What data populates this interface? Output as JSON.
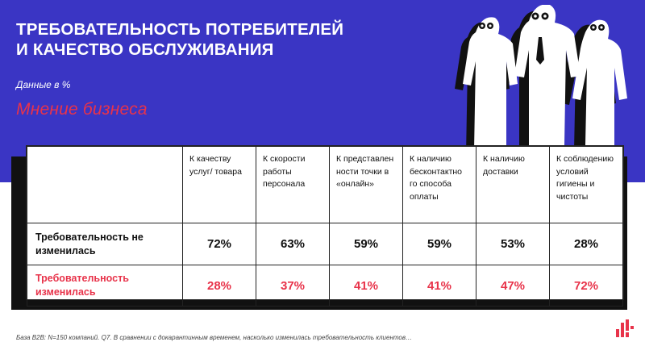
{
  "title": {
    "line1": "ТРЕБОВАТЕЛЬНОСТЬ ПОТРЕБИТЕЛЕЙ",
    "line2": "И КАЧЕСТВО ОБСЛУЖИВАНИЯ"
  },
  "subtitle": "Данные в %",
  "opinion": "Мнение бизнеса",
  "table": {
    "columns": [
      "К качеству услуг/ товара",
      "К скорости работы персонала",
      "К представлен ности точки в «онлайн»",
      "К наличию бесконтактно го способа оплаты",
      "К наличию доставки",
      "К соблюдению условий гигиены и чистоты"
    ],
    "rows": [
      {
        "label": "Требовательность не изменилась",
        "values": [
          "72%",
          "63%",
          "59%",
          "59%",
          "53%",
          "28%"
        ]
      },
      {
        "label": "Требовательность изменилась",
        "values": [
          "28%",
          "37%",
          "41%",
          "41%",
          "47%",
          "72%"
        ]
      }
    ]
  },
  "footnote": "База B2B: N=150 компаний. Q7. В сравнении с докарантинным временем, насколько изменилась требовательность клиентов…",
  "colors": {
    "banner": "#3a35c4",
    "accent": "#e8334a"
  }
}
